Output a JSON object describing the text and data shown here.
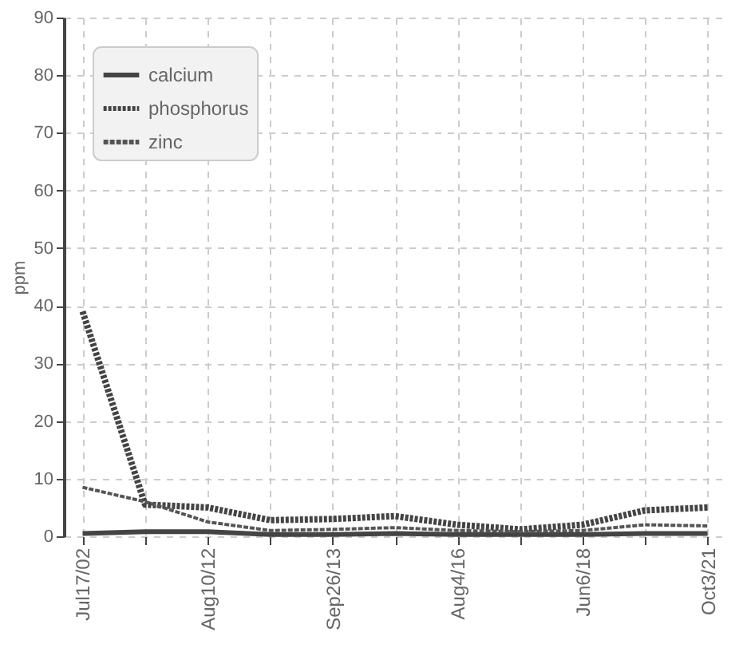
{
  "chart_data": {
    "type": "line",
    "ylabel": "ppm",
    "categories": [
      "Jul17/02",
      null,
      "Aug10/12",
      null,
      "Sep26/13",
      null,
      "Aug4/16",
      null,
      "Jun6/18",
      null,
      "Oct3/21"
    ],
    "series": [
      {
        "name": "calcium",
        "color": "#444444",
        "line_style": "solid",
        "values": [
          0.5,
          0.8,
          0.8,
          0.3,
          0.3,
          0.5,
          0.3,
          0.3,
          0.3,
          0.5,
          0.5
        ]
      },
      {
        "name": "phosphorus",
        "color": "#444444",
        "line_style": "dotted",
        "values": [
          39,
          5.5,
          5,
          2.8,
          3,
          3.5,
          2,
          1.2,
          2,
          4.5,
          5
        ]
      },
      {
        "name": "zinc",
        "color": "#555555",
        "line_style": "dashed",
        "values": [
          8.5,
          6,
          2.5,
          1,
          1.2,
          1.5,
          1,
          0.8,
          1,
          2,
          1.8
        ]
      }
    ],
    "ylim": [
      0,
      90
    ],
    "yticks": [
      0,
      10,
      20,
      30,
      40,
      50,
      60,
      70,
      80,
      90
    ],
    "grid": true,
    "legend": "top left",
    "marker": "none"
  }
}
